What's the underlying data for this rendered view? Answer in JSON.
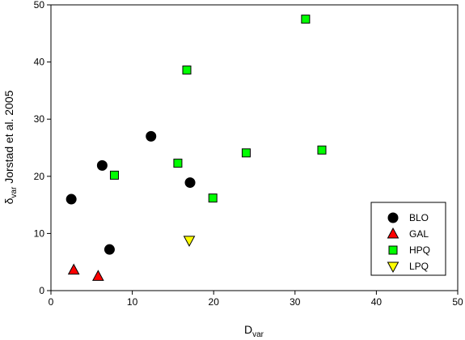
{
  "chart_data": {
    "type": "scatter",
    "xlabel": {
      "main": "D",
      "sub": "var"
    },
    "ylabel": {
      "main": "δ",
      "sub": "var",
      "rest": " Jorstad et al. 2005"
    },
    "xlim": [
      0,
      50
    ],
    "ylim": [
      0,
      50
    ],
    "x_ticks": [
      0,
      10,
      20,
      30,
      40,
      50
    ],
    "y_ticks": [
      0,
      10,
      20,
      30,
      40,
      50
    ],
    "grid": false,
    "legend_position": "bottom-right",
    "series": [
      {
        "name": "BLO",
        "marker": "circle",
        "color": "#000000",
        "points": [
          [
            2.5,
            16
          ],
          [
            6.3,
            21.9
          ],
          [
            7.2,
            7.2
          ],
          [
            12.3,
            27
          ],
          [
            17.1,
            18.9
          ]
        ]
      },
      {
        "name": "GAL",
        "marker": "triangle-up",
        "color": "#ff0000",
        "points": [
          [
            2.8,
            3.6
          ],
          [
            5.8,
            2.5
          ]
        ]
      },
      {
        "name": "HPQ",
        "marker": "square",
        "color": "#00ff00",
        "points": [
          [
            7.8,
            20.2
          ],
          [
            15.6,
            22.3
          ],
          [
            16.7,
            38.6
          ],
          [
            19.9,
            16.2
          ],
          [
            24,
            24.1
          ],
          [
            31.3,
            47.5
          ],
          [
            33.3,
            24.6
          ]
        ]
      },
      {
        "name": "LPQ",
        "marker": "triangle-down",
        "color": "#ffff00",
        "points": [
          [
            17,
            8.8
          ]
        ]
      }
    ]
  }
}
